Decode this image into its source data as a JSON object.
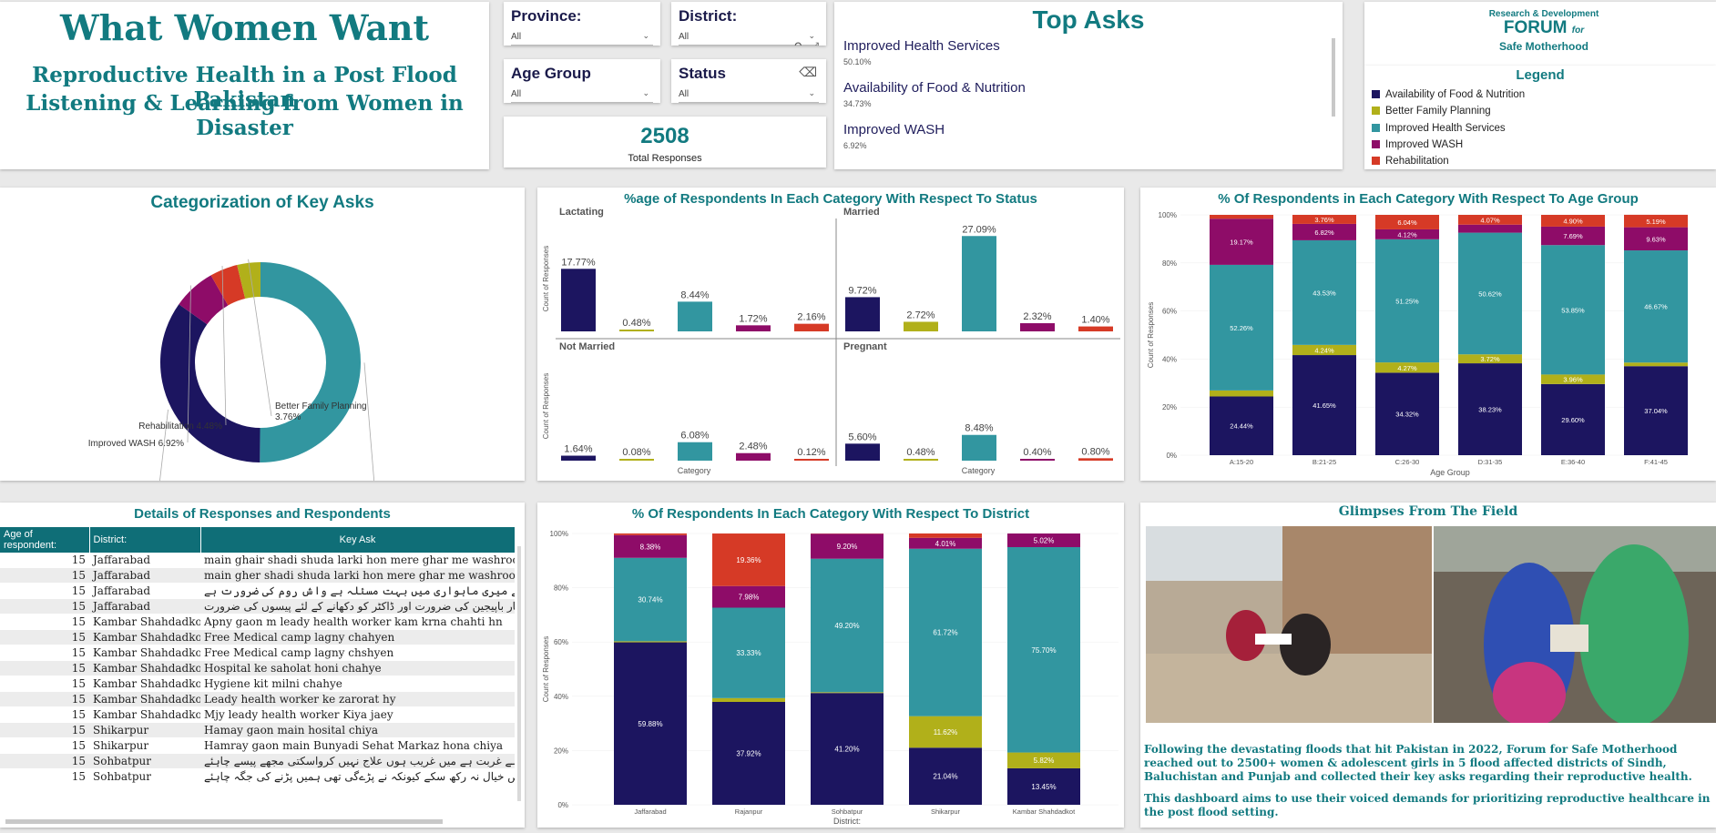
{
  "header": {
    "title": "What Women Want",
    "subtitle_line1": "Reproductive Health in a Post Flood Pakistan",
    "subtitle_line2": "Listening & Learning from Women in Disaster"
  },
  "filters": {
    "province": {
      "label": "Province:",
      "value": "All"
    },
    "district": {
      "label": "District:",
      "value": "All"
    },
    "age_group": {
      "label": "Age Group",
      "value": "All"
    },
    "status": {
      "label": "Status",
      "value": "All"
    }
  },
  "total": {
    "value": "2508",
    "label": "Total Responses"
  },
  "top_asks": {
    "title": "Top Asks",
    "items": [
      {
        "name": "Improved Health Services",
        "pct": "50.10%"
      },
      {
        "name": "Availability of Food & Nutrition",
        "pct": "34.73%"
      },
      {
        "name": "Improved WASH",
        "pct": "6.92%"
      }
    ]
  },
  "logo": {
    "line1": "Research & Development",
    "line2": "FORUM",
    "line3": "for",
    "line4": "Safe Motherhood"
  },
  "legend": {
    "title": "Legend",
    "items": [
      {
        "label": "Availability of Food & Nutrition",
        "color": "#1c1560"
      },
      {
        "label": "Better Family Planning",
        "color": "#b1b01a"
      },
      {
        "label": "Improved Health Services",
        "color": "#3296a0"
      },
      {
        "label": "Improved WASH",
        "color": "#8e0c68"
      },
      {
        "label": "Rehabilitation",
        "color": "#d63a26"
      }
    ]
  },
  "colors": {
    "food": "#1c1560",
    "family": "#b1b01a",
    "health": "#3296a0",
    "wash": "#8e0c68",
    "rehab": "#d63a26",
    "teal_title": "#127a80"
  },
  "chart_data": [
    {
      "type": "pie",
      "title": "Categorization of Key Asks",
      "slices": [
        {
          "label": "Improved Health Services",
          "value": 50.1,
          "text": "50.1%"
        },
        {
          "label": "Availability of Food & Nutrition",
          "value": 34.73,
          "text": "34.73%"
        },
        {
          "label": "Improved WASH",
          "value": 6.92,
          "text": "6.92%"
        },
        {
          "label": "Rehabilitation",
          "value": 4.48,
          "text": "4.48%"
        },
        {
          "label": "Better Family Planning",
          "value": 3.76,
          "text": "3.76%"
        }
      ]
    },
    {
      "type": "bar",
      "title": "%age of Respondents In Each Category With Respect To Status",
      "ylabel": "Count of Responses",
      "xlabel": "Category",
      "categories": [
        "Availability of Food & Nutrition",
        "Better Family Planning",
        "Improved Health Services",
        "Improved WASH",
        "Rehabilitation"
      ],
      "panels": [
        {
          "name": "Lactating",
          "values": [
            17.77,
            0.48,
            8.44,
            1.72,
            2.16
          ],
          "labels": [
            "17.77%",
            "0.48%",
            "8.44%",
            "1.72%",
            "2.16%"
          ]
        },
        {
          "name": "Married",
          "values": [
            9.72,
            2.72,
            27.09,
            2.32,
            1.4
          ],
          "labels": [
            "9.72%",
            "2.72%",
            "27.09%",
            "2.32%",
            "1.40%"
          ]
        },
        {
          "name": "Not Married",
          "values": [
            1.64,
            0.08,
            6.08,
            2.48,
            0.12
          ],
          "labels": [
            "1.64%",
            "0.08%",
            "6.08%",
            "2.48%",
            "0.12%"
          ]
        },
        {
          "name": "Pregnant",
          "values": [
            5.6,
            0.48,
            8.48,
            0.4,
            0.8
          ],
          "labels": [
            "5.60%",
            "0.48%",
            "8.48%",
            "0.40%",
            "0.80%"
          ]
        }
      ]
    },
    {
      "type": "bar",
      "title": "% Of Respondents in Each Category With Respect To Age Group",
      "ylabel": "Count of Responses",
      "xlabel": "Age Group",
      "yticks": [
        "0%",
        "20%",
        "40%",
        "60%",
        "80%",
        "100%"
      ],
      "categories": [
        "A:15-20",
        "B:21-25",
        "C:26-30",
        "D:31-35",
        "E:36-40",
        "F:41-45"
      ],
      "stacks": [
        {
          "food": 24.44,
          "family": 2.5,
          "health": 52.26,
          "wash": 19.17,
          "rehab": 1.63,
          "labels": {
            "food": "24.44%",
            "health": "52.26%",
            "wash": "19.17%"
          }
        },
        {
          "food": 41.65,
          "family": 4.24,
          "health": 43.53,
          "wash": 6.82,
          "rehab": 3.76,
          "labels": {
            "food": "41.65%",
            "family": "4.24%",
            "health": "43.53%",
            "wash": "6.82%",
            "rehab": "3.76%"
          }
        },
        {
          "food": 34.32,
          "family": 4.27,
          "health": 51.25,
          "wash": 4.12,
          "rehab": 6.04,
          "labels": {
            "food": "34.32%",
            "family": "4.27%",
            "health": "51.25%",
            "wash": "4.12%",
            "rehab": "6.04%"
          }
        },
        {
          "food": 38.23,
          "family": 3.72,
          "health": 50.62,
          "wash": 3.36,
          "rehab": 4.07,
          "labels": {
            "food": "38.23%",
            "family": "3.72%",
            "health": "50.62%",
            "rehab": "4.07%"
          }
        },
        {
          "food": 29.6,
          "family": 3.96,
          "health": 53.85,
          "wash": 7.69,
          "rehab": 4.9,
          "labels": {
            "food": "29.60%",
            "family": "3.96%",
            "health": "53.85%",
            "wash": "7.69%",
            "rehab": "4.90%"
          }
        },
        {
          "food": 37.04,
          "family": 1.5,
          "health": 46.67,
          "wash": 9.63,
          "rehab": 5.19,
          "labels": {
            "food": "37.04%",
            "health": "46.67%",
            "wash": "9.63%",
            "rehab": "5.19%"
          }
        }
      ]
    },
    {
      "type": "bar",
      "title": "% Of Respondents In Each Category With Respect To District",
      "ylabel": "Count of Responses",
      "xlabel": "District:",
      "yticks": [
        "0%",
        "20%",
        "40%",
        "60%",
        "80%",
        "100%"
      ],
      "categories": [
        "Jaffarabad",
        "Rajanpur",
        "Sohbatpur",
        "Shikarpur",
        "Kambar Shahdadkot"
      ],
      "stacks": [
        {
          "food": 59.88,
          "family": 0.4,
          "health": 30.74,
          "wash": 8.38,
          "rehab": 0.6,
          "labels": {
            "food": "59.88%",
            "health": "30.74%",
            "wash": "8.38%"
          }
        },
        {
          "food": 37.92,
          "family": 1.4,
          "health": 33.33,
          "wash": 7.98,
          "rehab": 19.36,
          "labels": {
            "food": "37.92%",
            "health": "33.33%",
            "wash": "7.98%",
            "rehab": "19.36%"
          }
        },
        {
          "food": 41.2,
          "family": 0.3,
          "health": 49.2,
          "wash": 9.2,
          "rehab": 0.1,
          "labels": {
            "food": "41.20%",
            "health": "49.20%",
            "wash": "9.20%"
          }
        },
        {
          "food": 21.04,
          "family": 11.62,
          "health": 61.72,
          "wash": 4.01,
          "rehab": 1.61,
          "labels": {
            "food": "21.04%",
            "family": "11.62%",
            "health": "61.72%",
            "wash": "4.01%"
          }
        },
        {
          "food": 13.45,
          "family": 5.82,
          "health": 75.7,
          "wash": 5.02,
          "rehab": 0.01,
          "labels": {
            "food": "13.45%",
            "family": "5.82%",
            "health": "75.70%",
            "wash": "5.02%"
          }
        }
      ]
    }
  ],
  "details": {
    "title": "Details of Responses and Respondents",
    "columns": [
      "Age of respondent:",
      "District:",
      "Key Ask"
    ],
    "rows": [
      [
        "15",
        "Jaffarabad",
        "main ghair shadi shuda larki hon mere ghar me washroom na"
      ],
      [
        "15",
        "Jaffarabad",
        "main gher shadi shuda larki hon mere ghar me washroom na"
      ],
      [
        "15",
        "Jaffarabad",
        "جن کٹ کی ضرورت ہے ان سب کی کمی کی وجہ سے میری ماہواری میں بہت مسئلہ ہے واش روم کی ضرورت ہے"
      ],
      [
        "15",
        "Jaffarabad",
        "بواری بہت بیمار باپیجین کی ضرورت اور ڈاکٹر کو دکھانے کے لئے پیسوں کی ضرورت"
      ],
      [
        "15",
        "Kambar Shahdadkot",
        "Apny gaon m leady health worker kam krna chahti hn"
      ],
      [
        "15",
        "Kambar Shahdadkot",
        "Free Medical camp lagny chahyen"
      ],
      [
        "15",
        "Kambar Shahdadkot",
        "Free Medical camp lagny chshyen"
      ],
      [
        "15",
        "Kambar Shahdadkot",
        "Hospital ke saholat honi chahye"
      ],
      [
        "15",
        "Kambar Shahdadkot",
        "Hygiene kit milni chahye"
      ],
      [
        "15",
        "Kambar Shahdadkot",
        "Leady health worker ke zarorat hy"
      ],
      [
        "15",
        "Kambar Shahdadkot",
        "Mjy leady health worker Kiya jaey"
      ],
      [
        "15",
        "Shikarpur",
        "Hamay gaon main hosital chiya"
      ],
      [
        "15",
        "Shikarpur",
        "Hamray gaon main Bunyadi Sehat Markaz hona chiya"
      ],
      [
        "15",
        "Sohbatpur",
        "ٹ کی وجہ سے کوئی سہولت نہ ملی ہے غربت ہے میں غریب ہوں علاج نہیں کرواسکتی مجھے پیسے چاہئے"
      ],
      [
        "15",
        "Sohbatpur",
        "ائی صفائی کا خاص خیال نہ رکھ سکے کیونکہ نے پڑےگی تھی ہمیں پڑنے کی جگہ چاہئے"
      ]
    ]
  },
  "glimpses": {
    "title": "Glimpses From The Field",
    "para1": "Following the devastating floods that hit Pakistan in 2022, Forum for Safe Motherhood reached out to 2500+ women & adolescent girls  in 5 flood affected districts of Sindh, Baluchistan and Punjab and collected their key asks regarding their reproductive health.",
    "para2": "This dashboard aims to use their voiced demands for prioritizing reproductive healthcare in the post flood setting."
  }
}
